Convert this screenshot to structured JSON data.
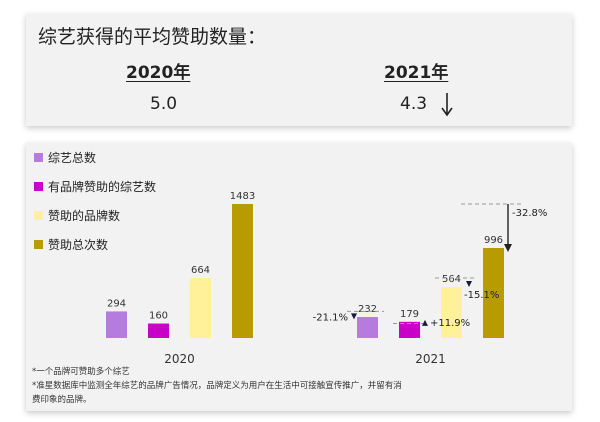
{
  "summary": {
    "title": "综艺获得的平均赞助数量：",
    "years": [
      {
        "label": "2020年",
        "value": "5.0"
      },
      {
        "label": "2021年",
        "value": "4.3"
      }
    ]
  },
  "colors": {
    "series": [
      "#b57bde",
      "#c800c8",
      "#fff09a",
      "#b89b00"
    ],
    "card": "#f2f2f2",
    "negative_marker": "#1a1a3a"
  },
  "chart_data": {
    "type": "bar",
    "categories": [
      "2020",
      "2021"
    ],
    "series": [
      {
        "name": "综艺总数",
        "values": [
          294,
          232
        ],
        "change": "-21.1%"
      },
      {
        "name": "有品牌赞助的综艺数",
        "values": [
          160,
          179
        ],
        "change": "+11.9%"
      },
      {
        "name": "赞助的品牌数",
        "values": [
          664,
          564
        ],
        "change": "-15.1%"
      },
      {
        "name": "赞助总次数",
        "values": [
          1483,
          996
        ],
        "change": "-32.8%"
      }
    ],
    "legend_position": "top-left",
    "ylim": [
      0,
      1483
    ],
    "grid": false
  },
  "footnotes": [
    "*一个品牌可赞助多个综艺",
    "*准星数据库中监测全年综艺的品牌广告情况，品牌定义为用户在生活中可接触宣传推广，并留有消",
    "费印象的品牌。"
  ]
}
